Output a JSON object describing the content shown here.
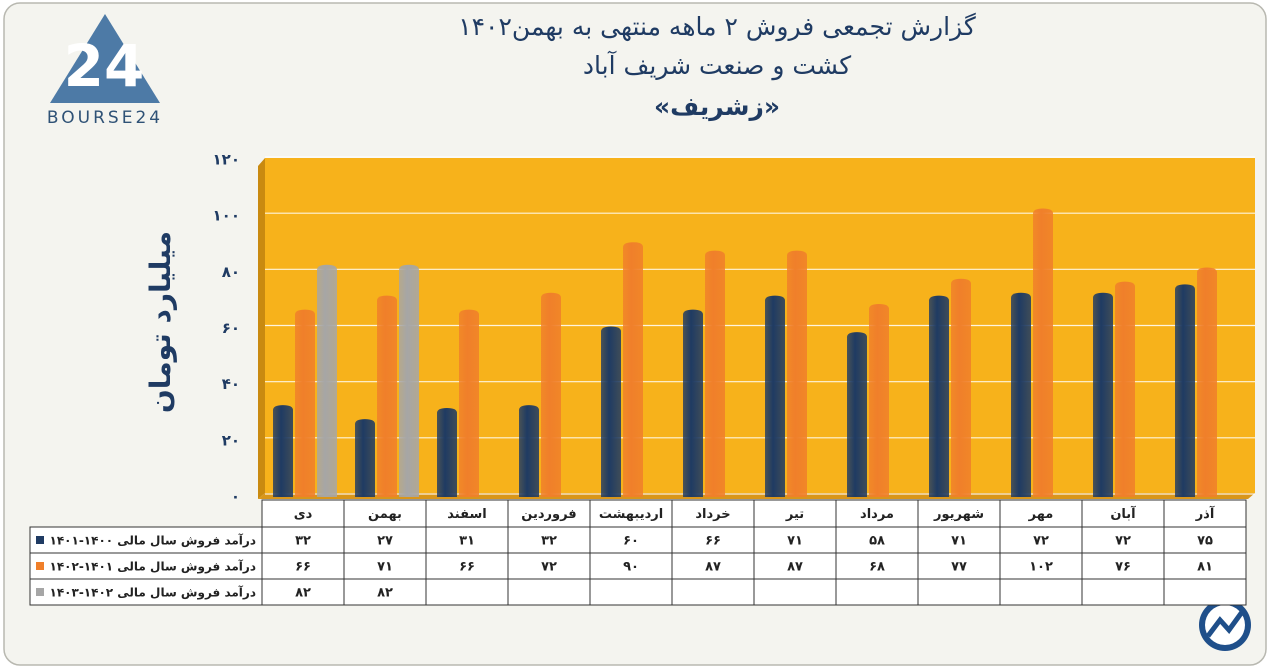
{
  "logo_mark": "24",
  "logo_text": "BOURSE24",
  "chart_data": {
    "type": "bar",
    "title": "گزارش تجمعی فروش ۲ ماهه منتهی به بهمن۱۴۰۲",
    "subtitle": "کشت و صنعت شریف آباد",
    "symbol": "«زشریف»",
    "y_label": "میلیارد تومان",
    "categories": [
      "دی",
      "بهمن",
      "اسفند",
      "فروردین",
      "اردیبهشت",
      "خرداد",
      "تیر",
      "مرداد",
      "شهریور",
      "مهر",
      "آبان",
      "آذر"
    ],
    "series": [
      {
        "name": "درآمد فروش سال مالی ۱۴۰۰-۱۴۰۱",
        "color": "#1f3b63",
        "values": [
          32,
          27,
          31,
          32,
          60,
          66,
          71,
          58,
          71,
          72,
          72,
          75
        ],
        "value_labels": [
          "۳۲",
          "۲۷",
          "۳۱",
          "۳۲",
          "۶۰",
          "۶۶",
          "۷۱",
          "۵۸",
          "۷۱",
          "۷۲",
          "۷۲",
          "۷۵"
        ]
      },
      {
        "name": "درآمد فروش سال مالی ۱۴۰۱-۱۴۰۲",
        "color": "#f07f2a",
        "values": [
          66,
          71,
          66,
          72,
          90,
          87,
          87,
          68,
          77,
          102,
          76,
          81
        ],
        "value_labels": [
          "۶۶",
          "۷۱",
          "۶۶",
          "۷۲",
          "۹۰",
          "۸۷",
          "۸۷",
          "۶۸",
          "۷۷",
          "۱۰۲",
          "۷۶",
          "۸۱"
        ]
      },
      {
        "name": "درآمد فروش سال مالی ۱۴۰۲-۱۴۰۳",
        "color": "#a6a6a6",
        "values": [
          82,
          82,
          null,
          null,
          null,
          null,
          null,
          null,
          null,
          null,
          null,
          null
        ],
        "value_labels": [
          "۸۲",
          "۸۲",
          null,
          null,
          null,
          null,
          null,
          null,
          null,
          null,
          null,
          null
        ]
      }
    ],
    "ylim": [
      0,
      120
    ],
    "yticks": [
      {
        "value": 0,
        "label": "۰"
      },
      {
        "value": 20,
        "label": "۲۰"
      },
      {
        "value": 40,
        "label": "۴۰"
      },
      {
        "value": 60,
        "label": "۶۰"
      },
      {
        "value": 80,
        "label": "۸۰"
      },
      {
        "value": 100,
        "label": "۱۰۰"
      },
      {
        "value": 120,
        "label": "۱۲۰"
      }
    ],
    "grid": true,
    "plot_background": "#f7b21b"
  }
}
